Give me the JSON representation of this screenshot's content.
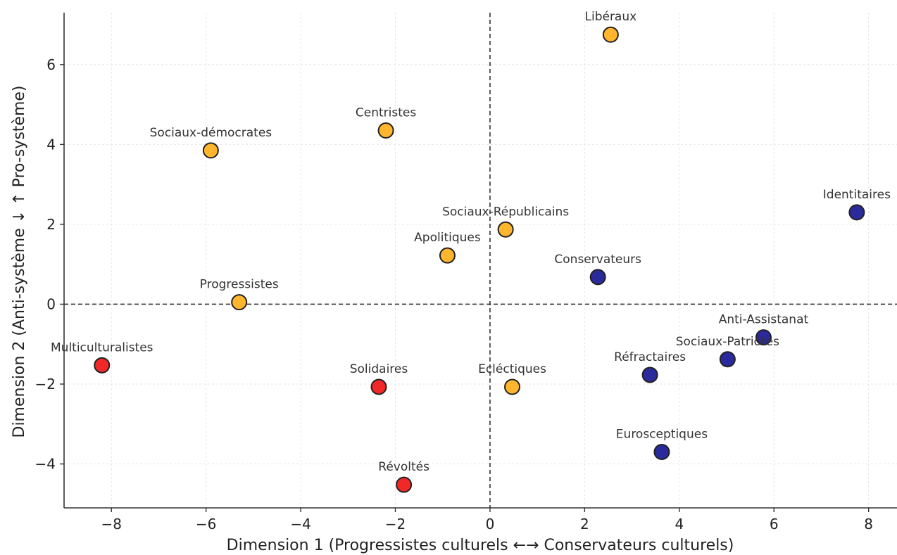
{
  "chart_data": {
    "type": "scatter",
    "title": "",
    "xlabel": "Dimension 1 (Progressistes culturels ←→ Conservateurs culturels)",
    "ylabel": "Dimension 2 (Anti-système ↓ ↑ Pro-système)",
    "xlim": [
      -9,
      8.6
    ],
    "ylim": [
      -5.1,
      7.3
    ],
    "xticks": [
      -8,
      -6,
      -4,
      -2,
      0,
      2,
      4,
      6,
      8
    ],
    "yticks": [
      -4,
      -2,
      0,
      2,
      4,
      6
    ],
    "grid": true,
    "reference_lines": {
      "x": 0,
      "y": 0,
      "style": "dashed"
    },
    "colors": {
      "orange": "#FFB52E",
      "navy": "#2A2A9C",
      "red": "#F02828",
      "edge": "#222222",
      "grid": "#e6e6e6"
    },
    "points": [
      {
        "label": "Libéraux",
        "x": 2.55,
        "y": 6.75,
        "color": "orange"
      },
      {
        "label": "Centristes",
        "x": -2.2,
        "y": 4.35,
        "color": "orange"
      },
      {
        "label": "Sociaux-démocrates",
        "x": -5.9,
        "y": 3.85,
        "color": "orange"
      },
      {
        "label": "Sociaux-Républicains",
        "x": 0.33,
        "y": 1.87,
        "color": "orange"
      },
      {
        "label": "Apolitiques",
        "x": -0.9,
        "y": 1.22,
        "color": "orange"
      },
      {
        "label": "Progressistes",
        "x": -5.3,
        "y": 0.05,
        "color": "orange"
      },
      {
        "label": "Ecléctiques",
        "x": 0.47,
        "y": -2.07,
        "color": "orange"
      },
      {
        "label": "Identitaires",
        "x": 7.75,
        "y": 2.3,
        "color": "navy"
      },
      {
        "label": "Conservateurs",
        "x": 2.28,
        "y": 0.68,
        "color": "navy"
      },
      {
        "label": "Anti-Assistanat",
        "x": 5.78,
        "y": -0.83,
        "color": "navy"
      },
      {
        "label": "Sociaux-Patriotes",
        "x": 5.02,
        "y": -1.38,
        "color": "navy"
      },
      {
        "label": "Réfractaires",
        "x": 3.38,
        "y": -1.77,
        "color": "navy"
      },
      {
        "label": "Eurosceptiques",
        "x": 3.63,
        "y": -3.7,
        "color": "navy"
      },
      {
        "label": "Multiculturalistes",
        "x": -8.2,
        "y": -1.53,
        "color": "red"
      },
      {
        "label": "Solidaires",
        "x": -2.35,
        "y": -2.07,
        "color": "red"
      },
      {
        "label": "Révoltés",
        "x": -1.82,
        "y": -4.52,
        "color": "red"
      }
    ]
  }
}
